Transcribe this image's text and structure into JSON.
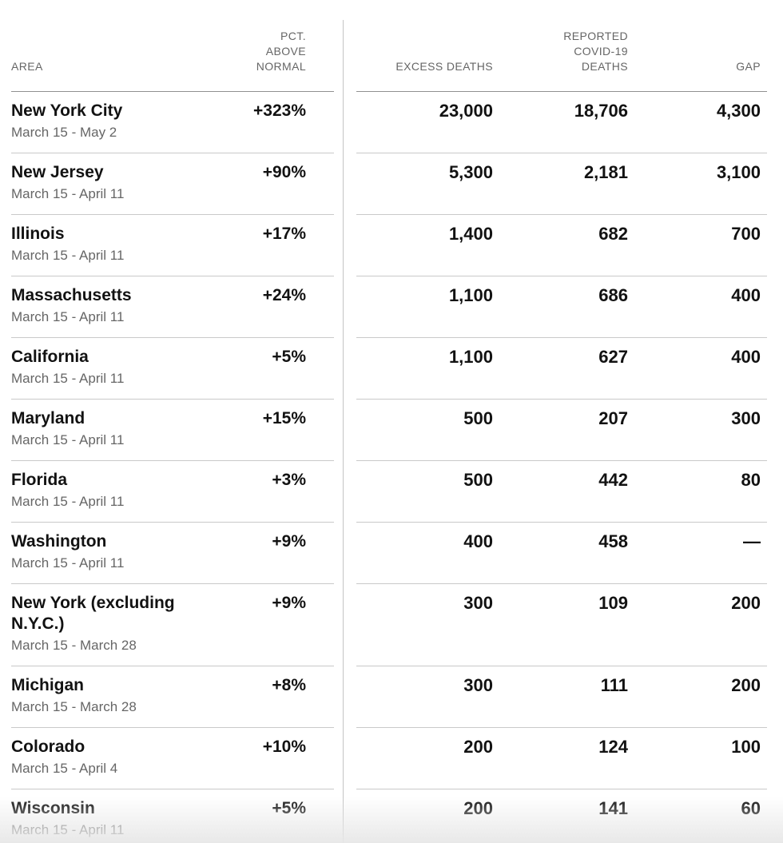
{
  "header": {
    "area": "AREA",
    "pct_above_normal": "PCT. ABOVE NORMAL",
    "excess_deaths": "EXCESS DEATHS",
    "reported_covid19_deaths": "REPORTED COVID-19 DEATHS",
    "gap": "GAP"
  },
  "colors": {
    "text": "#121212",
    "muted_text": "#666666",
    "header_rule": "#909090",
    "row_rule": "#c9c9c9",
    "divider": "#c4c4c4"
  },
  "chart_data": {
    "type": "table",
    "columns": [
      "AREA",
      "PCT. ABOVE NORMAL",
      "EXCESS DEATHS",
      "REPORTED COVID-19 DEATHS",
      "GAP"
    ],
    "rows": [
      {
        "area": "New York City",
        "dates": "March 15 - May 2",
        "pct_above_normal": "+323%",
        "excess_deaths": "23,000",
        "reported_covid19_deaths": "18,706",
        "gap": "4,300"
      },
      {
        "area": "New Jersey",
        "dates": "March 15 - April 11",
        "pct_above_normal": "+90%",
        "excess_deaths": "5,300",
        "reported_covid19_deaths": "2,181",
        "gap": "3,100"
      },
      {
        "area": "Illinois",
        "dates": "March 15 - April 11",
        "pct_above_normal": "+17%",
        "excess_deaths": "1,400",
        "reported_covid19_deaths": "682",
        "gap": "700"
      },
      {
        "area": "Massachusetts",
        "dates": "March 15 - April 11",
        "pct_above_normal": "+24%",
        "excess_deaths": "1,100",
        "reported_covid19_deaths": "686",
        "gap": "400"
      },
      {
        "area": "California",
        "dates": "March 15 - April 11",
        "pct_above_normal": "+5%",
        "excess_deaths": "1,100",
        "reported_covid19_deaths": "627",
        "gap": "400"
      },
      {
        "area": "Maryland",
        "dates": "March 15 - April 11",
        "pct_above_normal": "+15%",
        "excess_deaths": "500",
        "reported_covid19_deaths": "207",
        "gap": "300"
      },
      {
        "area": "Florida",
        "dates": "March 15 - April 11",
        "pct_above_normal": "+3%",
        "excess_deaths": "500",
        "reported_covid19_deaths": "442",
        "gap": "80"
      },
      {
        "area": "Washington",
        "dates": "March 15 - April 11",
        "pct_above_normal": "+9%",
        "excess_deaths": "400",
        "reported_covid19_deaths": "458",
        "gap": "—"
      },
      {
        "area": "New York (excluding N.Y.C.)",
        "dates": "March 15 - March 28",
        "pct_above_normal": "+9%",
        "excess_deaths": "300",
        "reported_covid19_deaths": "109",
        "gap": "200"
      },
      {
        "area": "Michigan",
        "dates": "March 15 - March 28",
        "pct_above_normal": "+8%",
        "excess_deaths": "300",
        "reported_covid19_deaths": "111",
        "gap": "200"
      },
      {
        "area": "Colorado",
        "dates": "March 15 - April 4",
        "pct_above_normal": "+10%",
        "excess_deaths": "200",
        "reported_covid19_deaths": "124",
        "gap": "100"
      },
      {
        "area": "Wisconsin",
        "dates": "March 15 - April 11",
        "pct_above_normal": "+5%",
        "excess_deaths": "200",
        "reported_covid19_deaths": "141",
        "gap": "60"
      }
    ]
  }
}
